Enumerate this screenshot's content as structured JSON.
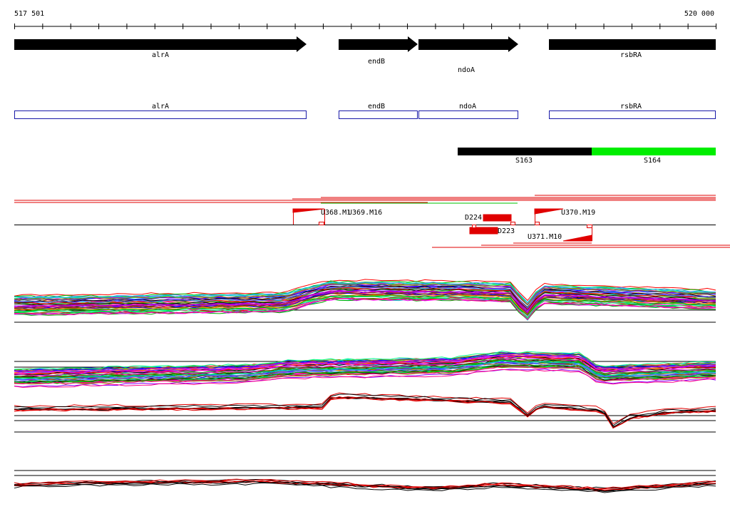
{
  "ruler": {
    "start": "517 501",
    "end": "520 000"
  },
  "genes": [
    {
      "label": "alrA"
    },
    {
      "label": "endB"
    },
    {
      "label": "ndoA"
    },
    {
      "label": "rsbRA"
    }
  ],
  "annotations": [
    {
      "label": "alrA"
    },
    {
      "label": "endB"
    },
    {
      "label": "ndoA"
    },
    {
      "label": "rsbRA"
    }
  ],
  "segments": [
    {
      "label": "S163"
    },
    {
      "label": "S164"
    }
  ],
  "features": [
    {
      "label": "U368.M1"
    },
    {
      "label": "U369.M16"
    },
    {
      "label": "D224"
    },
    {
      "label": "D223"
    },
    {
      "label": "U370.M19"
    },
    {
      "label": "U371.M10"
    }
  ]
}
